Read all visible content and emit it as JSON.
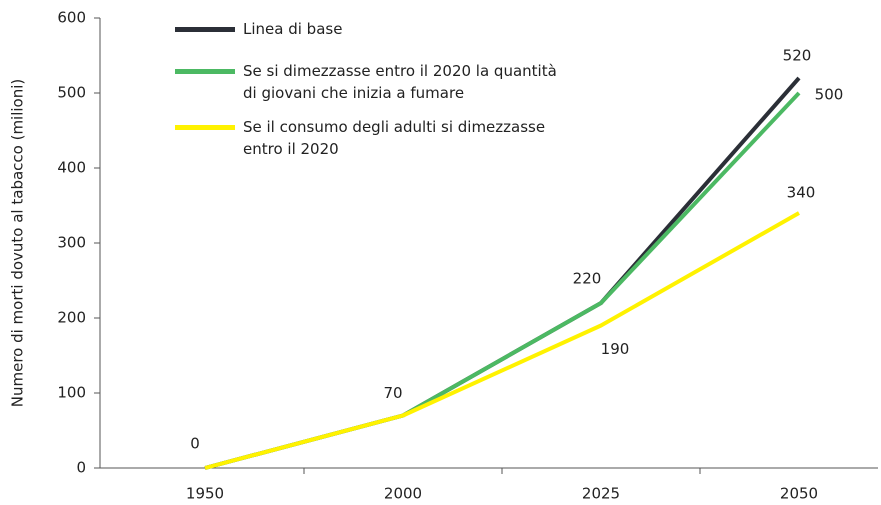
{
  "chart_data": {
    "type": "line",
    "y_label": "Numero di morti dovuto al  tabacco (milioni)",
    "categories": [
      "1950",
      "2000",
      "2025",
      "2050"
    ],
    "series": [
      {
        "name": "Linea di base",
        "color": "#2b2f37",
        "values": [
          0,
          70,
          220,
          520
        ]
      },
      {
        "name": "Se si dimezzasse entro il 2020 la quantità\ndi giovani che inizia a fumare",
        "color": "#4cb963",
        "values": [
          0,
          70,
          220,
          500
        ]
      },
      {
        "name": "Se il consumo degli adulti si dimezzasse\nentro il 2020",
        "color": "#fff200",
        "values": [
          0,
          70,
          190,
          340
        ]
      }
    ],
    "ylim": [
      0,
      600
    ],
    "yticks": [
      0,
      100,
      200,
      300,
      400,
      500,
      600
    ],
    "grid": false
  }
}
